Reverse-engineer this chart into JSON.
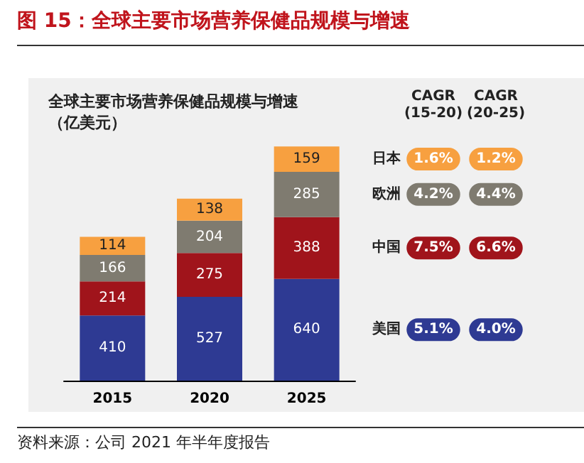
{
  "chart_data": {
    "type": "bar",
    "stacked": true,
    "title": "图 15：全球主要市场营养保健品规模与增速",
    "subtitle": "全球主要市场营养保健品规模与增速（亿美元）",
    "categories": [
      "2015",
      "2020",
      "2025"
    ],
    "series": [
      {
        "name": "美国",
        "color": "#2e3a93",
        "values": [
          410,
          527,
          640
        ]
      },
      {
        "name": "中国",
        "color": "#a0141b",
        "values": [
          214,
          275,
          388
        ]
      },
      {
        "name": "欧洲",
        "color": "#7f7b70",
        "values": [
          166,
          204,
          285
        ]
      },
      {
        "name": "日本",
        "color": "#f7a040",
        "values": [
          114,
          138,
          159
        ]
      }
    ],
    "data_labels": true,
    "tick_labels": "x",
    "legend": "right",
    "annotations": [
      "CAGR\n(15-20)",
      "CAGR\n(20-25)",
      "5.1%",
      "4.0%",
      "7.5%",
      "6.6%",
      "4.2%",
      "4.4%",
      "1.6%",
      "1.2%",
      "资料来源：公司 2021 年半年度报告"
    ]
  }
}
